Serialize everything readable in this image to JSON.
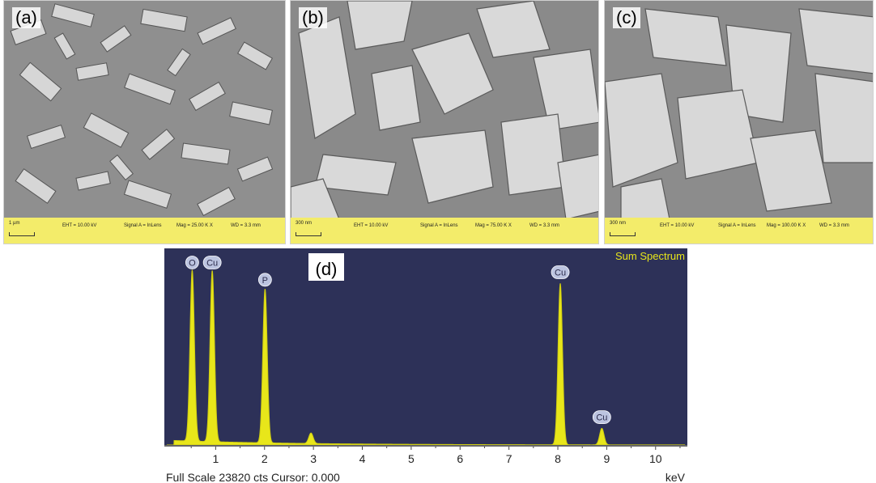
{
  "panels": [
    {
      "label": "(a)",
      "scale": "1 µm",
      "eht": "EHT = 10.00 kV",
      "signal": "Signal A = InLens",
      "mag": "Mag = 25.00 K X",
      "wd": "WD = 3.3 mm"
    },
    {
      "label": "(b)",
      "scale": "300 nm",
      "eht": "EHT = 10.00 kV",
      "signal": "Signal A = InLens",
      "mag": "Mag = 75.00 K X",
      "wd": "WD = 3.3 mm"
    },
    {
      "label": "(c)",
      "scale": "300 nm",
      "eht": "EHT = 10.00 kV",
      "signal": "Signal A = InLens",
      "mag": "Mag = 100.00 K X",
      "wd": "WD = 3.3 mm"
    }
  ],
  "spectrum": {
    "label": "(d)",
    "title": "Sum Spectrum",
    "footer": "Full Scale 23820 cts Cursor: 0.000",
    "unit": "keV",
    "colors": {
      "background": "#2d3158",
      "peak": "#e8e61a",
      "badge": "#bcc4e0"
    }
  },
  "chart_data": {
    "type": "area",
    "title": "Sum Spectrum",
    "xlabel": "keV",
    "ylabel": "",
    "xlim": [
      0,
      10.6
    ],
    "ylim": [
      0,
      23820
    ],
    "x_ticks": [
      1,
      2,
      3,
      4,
      5,
      6,
      7,
      8,
      9,
      10
    ],
    "peaks": [
      {
        "element": "O",
        "energy": 0.52,
        "counts": 22800
      },
      {
        "element": "Cu",
        "energy": 0.93,
        "counts": 22800
      },
      {
        "element": "P",
        "energy": 2.01,
        "counts": 20500
      },
      {
        "element": "Cu",
        "energy": 8.05,
        "counts": 21500
      },
      {
        "element": "Cu",
        "energy": 8.9,
        "counts": 2200
      }
    ],
    "minor_peaks": [
      {
        "energy": 2.95,
        "counts": 1400
      }
    ]
  }
}
